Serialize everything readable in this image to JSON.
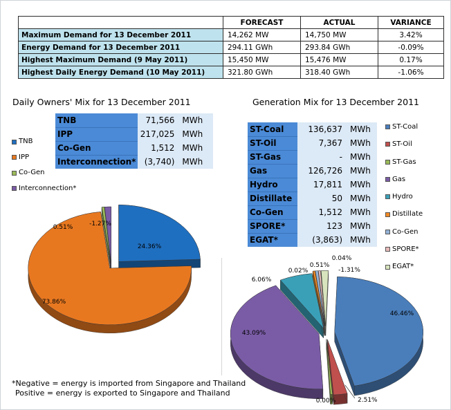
{
  "summary": {
    "headers": [
      "",
      "FORECAST",
      "ACTUAL",
      "VARIANCE"
    ],
    "rows": [
      {
        "label": "Maximum Demand for 13 December 2011",
        "forecast": "14,262  MW",
        "actual": "14,750  MW",
        "variance": "3.42%"
      },
      {
        "label": "Energy Demand for 13 December 2011",
        "forecast": "294.11  GWh",
        "actual": "293.84  GWh",
        "variance": "-0.09%"
      },
      {
        "label": "Highest Maximum Demand (9 May 2011)",
        "forecast": "15,450  MW",
        "actual": "15,476  MW",
        "variance": "0.17%"
      },
      {
        "label": "Highest Daily Energy Demand (10 May 2011)",
        "forecast": "321.80  GWh",
        "actual": "318.40  GWh",
        "variance": "-1.06%"
      }
    ]
  },
  "owners": {
    "title": "Daily Owners' Mix for 13 December 2011",
    "unit": "MWh",
    "rows": [
      {
        "name": "TNB",
        "value": "71,566"
      },
      {
        "name": "IPP",
        "value": "217,025"
      },
      {
        "name": "Co-Gen",
        "value": "1,512"
      },
      {
        "name": "Interconnection*",
        "value": "(3,740)"
      }
    ]
  },
  "generation": {
    "title": "Generation Mix for 13 December 2011",
    "unit": "MWh",
    "rows": [
      {
        "name": "ST-Coal",
        "value": "136,637"
      },
      {
        "name": "ST-Oil",
        "value": "7,367"
      },
      {
        "name": "ST-Gas",
        "value": "-"
      },
      {
        "name": "Gas",
        "value": "126,726"
      },
      {
        "name": "Hydro",
        "value": "17,811"
      },
      {
        "name": "Distillate",
        "value": "50"
      },
      {
        "name": "Co-Gen",
        "value": "1,512"
      },
      {
        "name": "SPORE*",
        "value": "123"
      },
      {
        "name": "EGAT*",
        "value": "(3,863)"
      }
    ]
  },
  "chart_data": [
    {
      "type": "pie",
      "title": "Daily Owners' Mix for 13 December 2011",
      "legend": "left",
      "categories": [
        "TNB",
        "IPP",
        "Co-Gen",
        "Interconnection*"
      ],
      "values": [
        24.36,
        73.86,
        0.51,
        -1.27
      ],
      "labels": [
        "24.36%",
        "73.86%",
        "0.51%",
        "-1.27%"
      ],
      "colors": [
        "#1f6fc0",
        "#e87820",
        "#9bbb59",
        "#7a5ca6"
      ]
    },
    {
      "type": "pie",
      "title": "Generation Mix for 13 December 2011",
      "legend": "right",
      "categories": [
        "ST-Coal",
        "ST-Oil",
        "ST-Gas",
        "Gas",
        "Hydro",
        "Distillate",
        "Co-Gen",
        "SPORE*",
        "EGAT*"
      ],
      "values": [
        46.46,
        2.51,
        0.0,
        43.09,
        6.06,
        0.02,
        0.51,
        0.04,
        -1.31
      ],
      "labels": [
        "46.46%",
        "2.51%",
        "0.00%",
        "43.09%",
        "6.06%",
        "0.02%",
        "0.51%",
        "0.04%",
        "-1.31%"
      ],
      "colors": [
        "#4a7ebb",
        "#c0504d",
        "#9bbb59",
        "#7a5ca6",
        "#3aa0b8",
        "#f08a24",
        "#95b3d7",
        "#e6b9b8",
        "#d7e4bd"
      ]
    }
  ],
  "note": {
    "line1": "*Negative = energy is imported from Singapore and Thailand",
    "line2": "Positive = energy is exported to Singapore and Thailand"
  }
}
